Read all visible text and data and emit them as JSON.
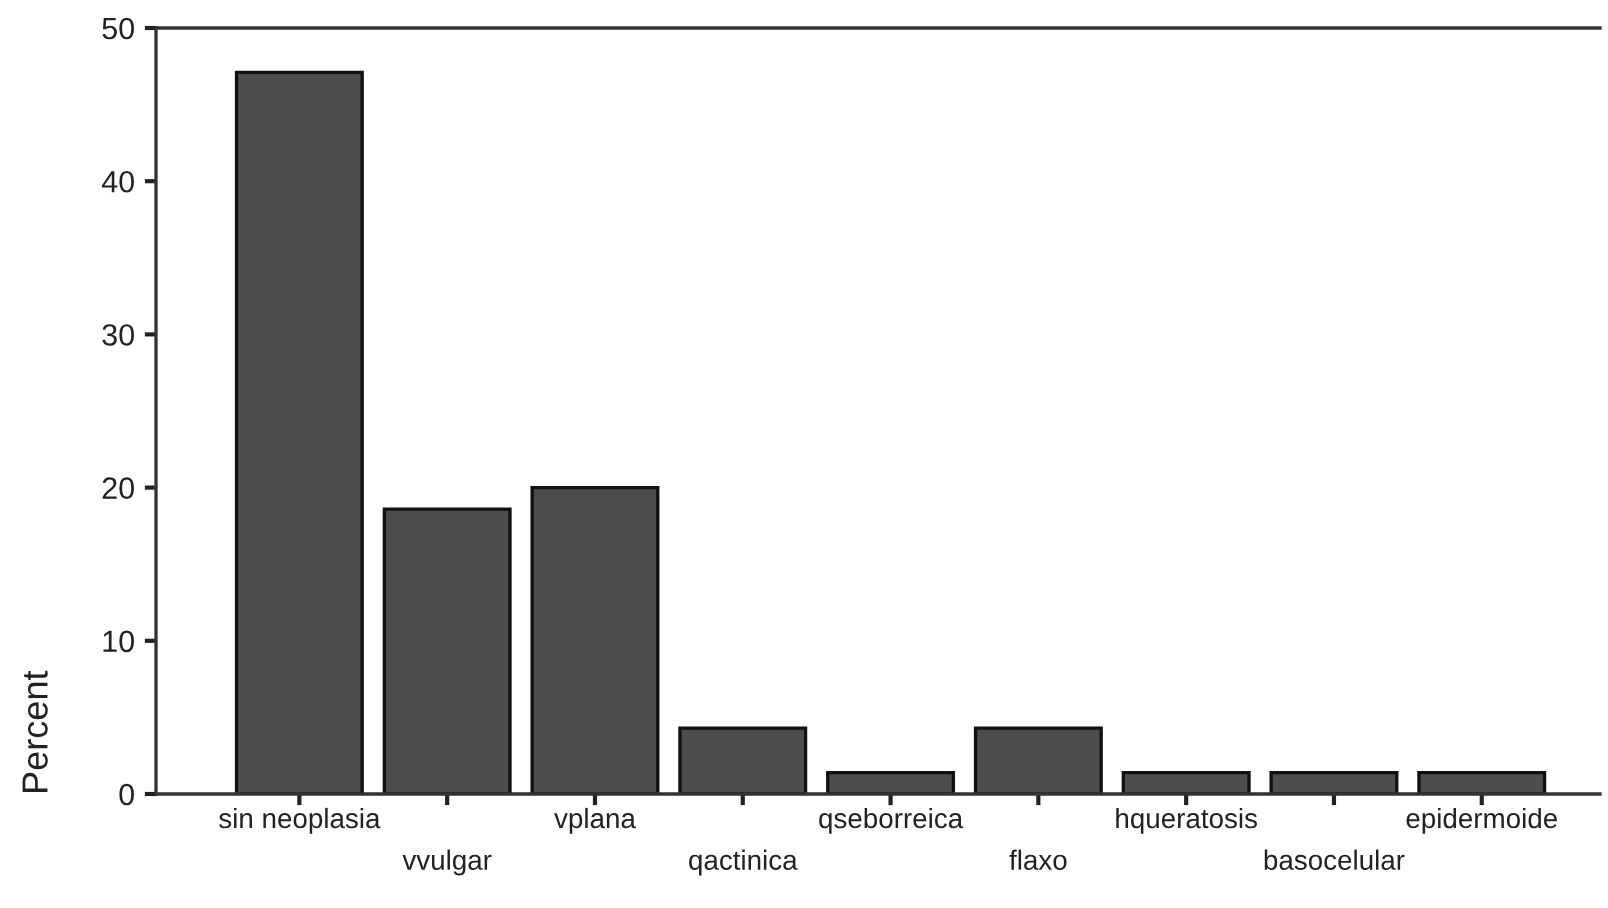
{
  "chart_data": {
    "type": "bar",
    "ylabel": "Percent",
    "categories": [
      "sin neoplasia",
      "vvulgar",
      "vplana",
      "qactinica",
      "qseborreica",
      "flaxo",
      "hqueratosis",
      "basocelular",
      "epidermoide"
    ],
    "values": [
      47.1,
      18.6,
      20.0,
      4.3,
      1.4,
      4.3,
      1.4,
      1.4,
      1.4
    ],
    "color": "#4d4d4d",
    "ylim": [
      0,
      50
    ],
    "yticks": [
      0,
      10,
      20,
      30,
      40,
      50
    ],
    "grid": false
  }
}
